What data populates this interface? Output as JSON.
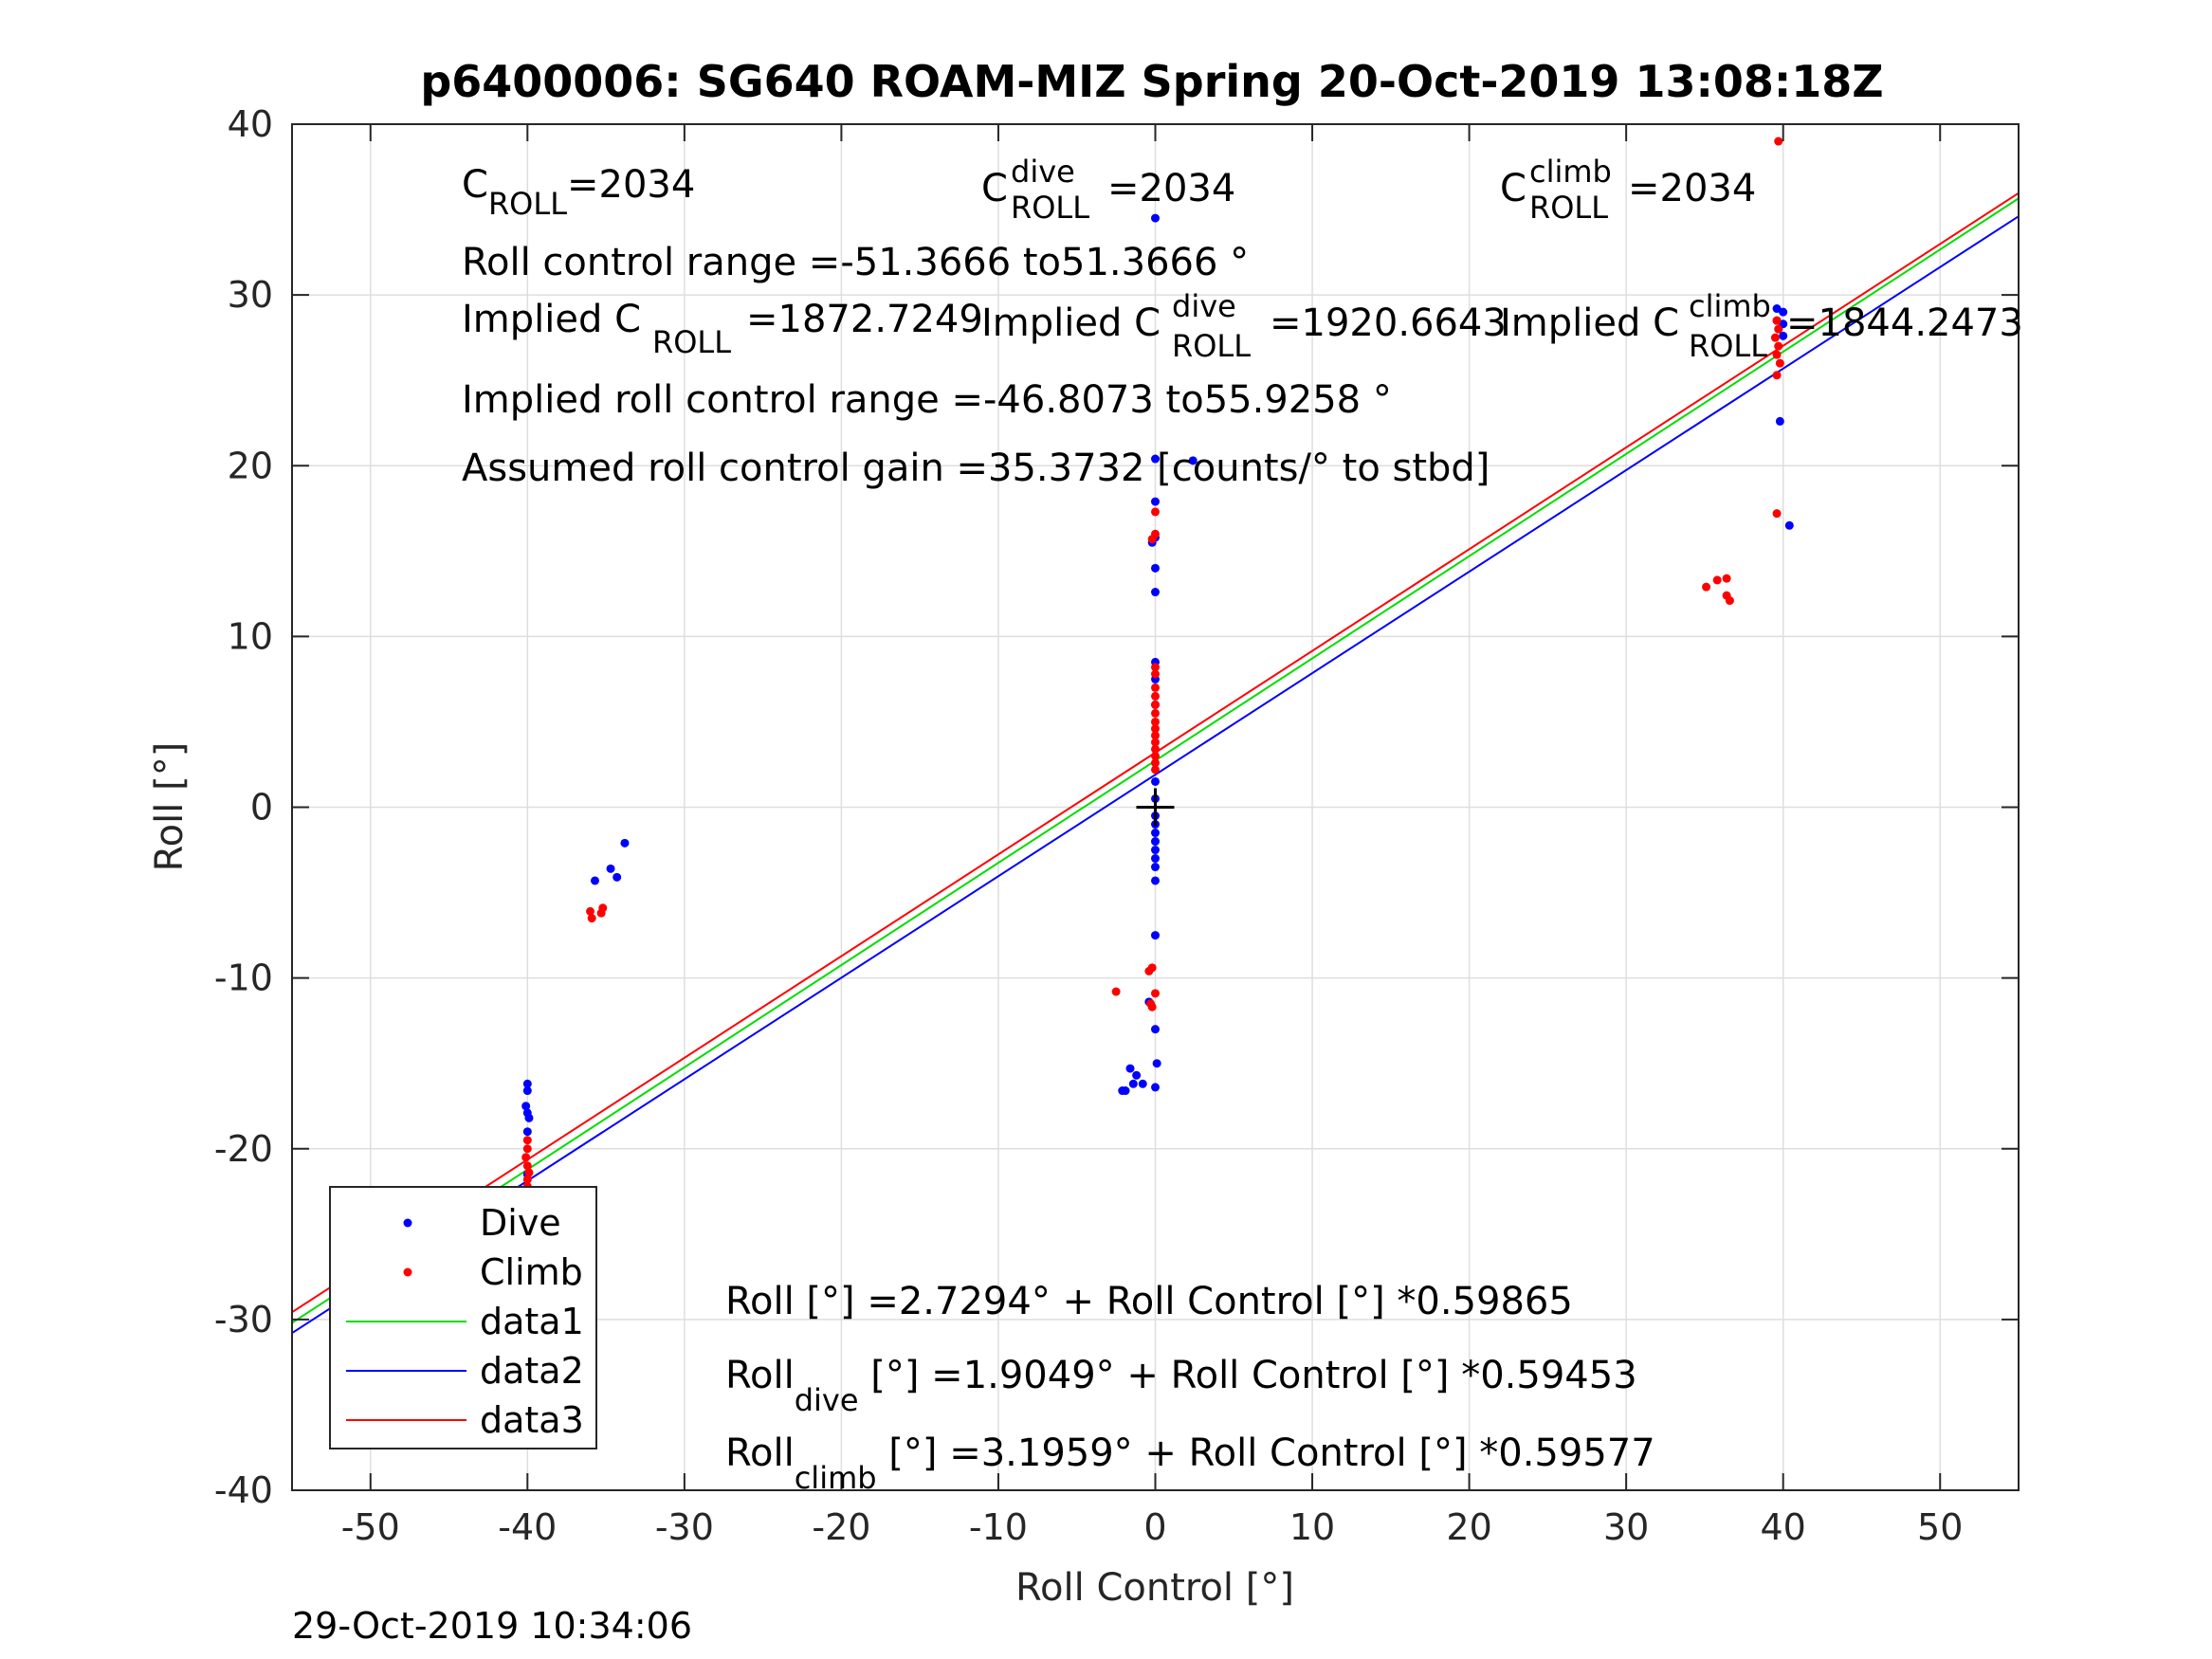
{
  "chart_data": {
    "type": "scatter",
    "title": "p6400006: SG640 ROAM-MIZ Spring 20-Oct-2019 13:08:18Z",
    "xlabel": "Roll Control [°]",
    "ylabel": "Roll [°]",
    "xlim": [
      -55,
      55
    ],
    "ylim": [
      -40,
      40
    ],
    "xticks": [
      -50,
      -40,
      -30,
      -20,
      -10,
      0,
      10,
      20,
      30,
      40,
      50
    ],
    "yticks": [
      -40,
      -30,
      -20,
      -10,
      0,
      10,
      20,
      30,
      40
    ],
    "grid": true,
    "legend_position": "bottom-left",
    "timestamp": "29-Oct-2019 10:34:06",
    "annotations": {
      "c_roll_base": "C",
      "c_roll_sub": "ROLL",
      "c_roll_value": "=2034",
      "c_dive_base": "C",
      "c_dive_sup": "dive",
      "c_dive_sub": "ROLL",
      "c_dive_value": "=2034",
      "c_climb_base": "C",
      "c_climb_sup": "climb",
      "c_climb_sub": "ROLL",
      "c_climb_value": "=2034",
      "range_text": "Roll control range =-51.3666 to51.3666 °",
      "implied_prefix": "Implied C",
      "implied_sub": "ROLL",
      "implied_value": "=1872.7249",
      "implied_dive_sup": "dive",
      "implied_dive_value": "=1920.6643",
      "implied_climb_sup": "climb",
      "implied_climb_value": "=1844.2473",
      "implied_range_text": "Implied roll control range =-46.8073 to55.9258 °",
      "gain_text": "Assumed roll control gain =35.3732 [counts/° to stbd]",
      "fit_all": "Roll [°] =2.7294° + Roll Control [°] *0.59865",
      "fit_dive_base": "Roll",
      "fit_dive_sub": "dive",
      "fit_dive_rest": " [°] =1.9049° + Roll Control [°] *0.59453",
      "fit_climb_base": "Roll",
      "fit_climb_sub": "climb",
      "fit_climb_rest": " [°] =3.1959° + Roll Control [°] *0.59577"
    },
    "colors": {
      "dive": "#0000ff",
      "climb": "#ff0000",
      "data1": "#00dd00",
      "data2": "#0000ff",
      "data3": "#ff0000",
      "center_mark": "#000000"
    },
    "center_mark": {
      "x": 0,
      "y": 0
    },
    "lines": [
      {
        "name": "data1",
        "intercept": 2.7294,
        "slope": 0.59865
      },
      {
        "name": "data2",
        "intercept": 1.9049,
        "slope": 0.59453
      },
      {
        "name": "data3",
        "intercept": 3.1959,
        "slope": 0.59577
      }
    ],
    "series": [
      {
        "name": "Dive",
        "points": [
          [
            -40,
            -16.2
          ],
          [
            -40,
            -16.6
          ],
          [
            -40.1,
            -17.5
          ],
          [
            -40,
            -17.9
          ],
          [
            -39.9,
            -18.2
          ],
          [
            -40,
            -19.0
          ],
          [
            -40,
            -21.5
          ],
          [
            -40,
            -22.3
          ],
          [
            -40.1,
            -22.8
          ],
          [
            -40,
            -23.2
          ],
          [
            -39.9,
            -23.5
          ],
          [
            -40,
            -23.7
          ],
          [
            -40,
            -24.0
          ],
          [
            -40,
            -24.4
          ],
          [
            -40,
            -24.8
          ],
          [
            -35.7,
            -4.3
          ],
          [
            -34.7,
            -3.6
          ],
          [
            -34.3,
            -4.1
          ],
          [
            -33.8,
            -2.1
          ],
          [
            0,
            34.5
          ],
          [
            0,
            20.4
          ],
          [
            2.4,
            20.3
          ],
          [
            0,
            17.9
          ],
          [
            -0.2,
            15.5
          ],
          [
            0,
            15.8
          ],
          [
            0,
            14.0
          ],
          [
            0,
            12.6
          ],
          [
            0,
            8.5
          ],
          [
            0,
            7.5
          ],
          [
            0,
            6.0
          ],
          [
            0,
            1.5
          ],
          [
            0,
            0.5
          ],
          [
            0,
            -0.5
          ],
          [
            0,
            -1.0
          ],
          [
            0,
            -1.5
          ],
          [
            0,
            -2.0
          ],
          [
            0,
            -2.5
          ],
          [
            0,
            -3.0
          ],
          [
            0,
            -3.5
          ],
          [
            0,
            -4.3
          ],
          [
            0,
            -7.5
          ],
          [
            -0.4,
            -11.4
          ],
          [
            0,
            -13.0
          ],
          [
            0.1,
            -15.0
          ],
          [
            -1.2,
            -15.7
          ],
          [
            -1.6,
            -15.3
          ],
          [
            -1.4,
            -16.2
          ],
          [
            -2.1,
            -16.6
          ],
          [
            -1.9,
            -16.6
          ],
          [
            -0.8,
            -16.2
          ],
          [
            0,
            -16.4
          ],
          [
            39.6,
            29.2
          ],
          [
            40,
            29.0
          ],
          [
            40,
            28.3
          ],
          [
            40,
            27.6
          ],
          [
            39.6,
            28.5
          ],
          [
            39.8,
            22.6
          ],
          [
            40.4,
            16.5
          ]
        ]
      },
      {
        "name": "Climb",
        "points": [
          [
            -40,
            -19.5
          ],
          [
            -40,
            -20.0
          ],
          [
            -40.1,
            -20.5
          ],
          [
            -40,
            -21.0
          ],
          [
            -39.9,
            -21.4
          ],
          [
            -40,
            -21.8
          ],
          [
            -40,
            -22.2
          ],
          [
            -40.1,
            -22.7
          ],
          [
            -40,
            -23.1
          ],
          [
            -40,
            -23.6
          ],
          [
            -36.0,
            -6.1
          ],
          [
            -35.9,
            -6.5
          ],
          [
            -35.3,
            -6.2
          ],
          [
            -35.2,
            -5.9
          ],
          [
            0,
            16.0
          ],
          [
            -0.2,
            15.7
          ],
          [
            0,
            17.3
          ],
          [
            0,
            8.2
          ],
          [
            0,
            7.8
          ],
          [
            0,
            7.0
          ],
          [
            0,
            6.5
          ],
          [
            0,
            6.0
          ],
          [
            0,
            5.5
          ],
          [
            0,
            5.0
          ],
          [
            0,
            4.6
          ],
          [
            0,
            4.2
          ],
          [
            0,
            3.8
          ],
          [
            0,
            3.4
          ],
          [
            0,
            3.0
          ],
          [
            0,
            2.6
          ],
          [
            0,
            2.2
          ],
          [
            -0.4,
            -9.6
          ],
          [
            -0.2,
            -9.4
          ],
          [
            0,
            -10.9
          ],
          [
            -2.5,
            -10.8
          ],
          [
            -0.3,
            -11.5
          ],
          [
            -0.2,
            -11.7
          ],
          [
            39.7,
            39.0
          ],
          [
            39.6,
            28.5
          ],
          [
            39.7,
            28.0
          ],
          [
            39.5,
            27.5
          ],
          [
            39.7,
            27.0
          ],
          [
            39.6,
            26.5
          ],
          [
            39.8,
            26.0
          ],
          [
            39.6,
            25.3
          ],
          [
            39.6,
            17.2
          ],
          [
            35.1,
            12.9
          ],
          [
            35.8,
            13.3
          ],
          [
            36.4,
            13.4
          ],
          [
            36.4,
            12.4
          ],
          [
            36.6,
            12.1
          ]
        ]
      }
    ],
    "legend": [
      "Dive",
      "Climb",
      "data1",
      "data2",
      "data3"
    ]
  }
}
